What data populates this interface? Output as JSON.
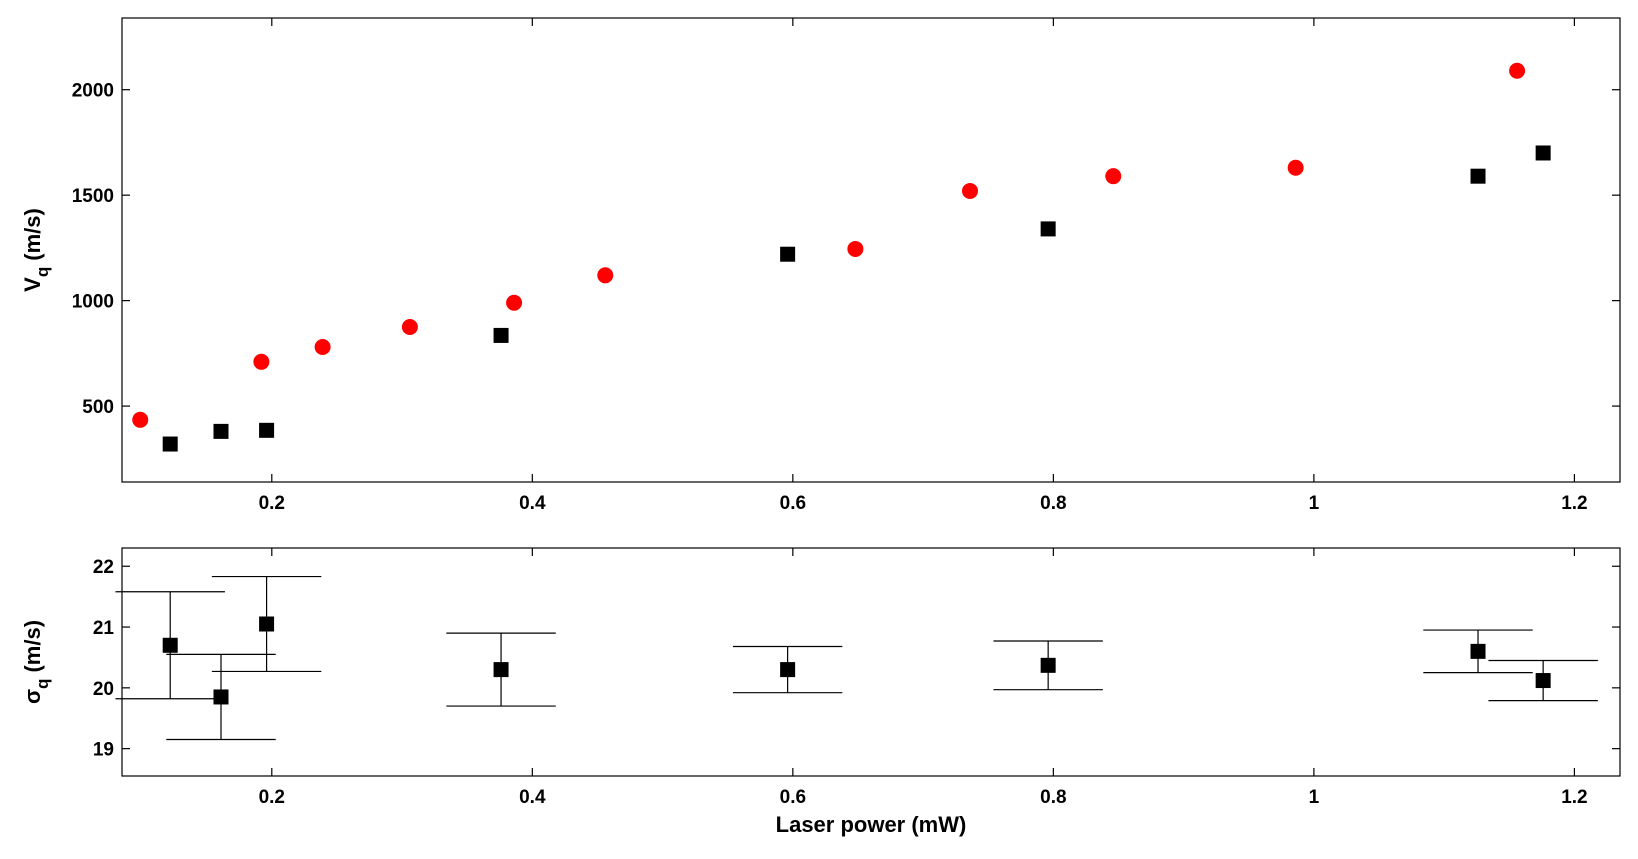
{
  "chart_data": [
    {
      "type": "scatter",
      "ylabel": "V",
      "ylabel_sub": "q",
      "ylabel_unit": "(m/s)",
      "xlim": [
        0.085,
        1.235
      ],
      "ylim": [
        140,
        2340
      ],
      "xticks": [
        0.2,
        0.4,
        0.6,
        0.8,
        1,
        1.2
      ],
      "xtick_labels": [
        "0.2",
        "0.4",
        "0.6",
        "0.8",
        "1",
        "1.2"
      ],
      "yticks": [
        500,
        1000,
        1500,
        2000
      ],
      "ytick_labels": [
        "500",
        "1000",
        "1500",
        "2000"
      ],
      "grid": false,
      "series": [
        {
          "marker": "circle",
          "color": "#ff0000",
          "x": [
            0.099,
            0.192,
            0.239,
            0.306,
            0.386,
            0.456,
            0.648,
            0.736,
            0.846,
            0.986,
            1.156
          ],
          "y": [
            435,
            710,
            780,
            875,
            990,
            1120,
            1245,
            1520,
            1590,
            1630,
            2090
          ]
        },
        {
          "marker": "square",
          "color": "#000000",
          "x": [
            0.122,
            0.161,
            0.196,
            0.376,
            0.596,
            0.796,
            1.126,
            1.176
          ],
          "y": [
            320,
            380,
            385,
            835,
            1220,
            1340,
            1590,
            1700
          ]
        }
      ]
    },
    {
      "type": "scatter",
      "xlabel": "Laser power (mW)",
      "ylabel": "σ",
      "ylabel_sub": "q",
      "ylabel_unit": "(m/s)",
      "xlim": [
        0.085,
        1.235
      ],
      "ylim": [
        18.55,
        22.3
      ],
      "xticks": [
        0.2,
        0.4,
        0.6,
        0.8,
        1,
        1.2
      ],
      "xtick_labels": [
        "0.2",
        "0.4",
        "0.6",
        "0.8",
        "1",
        "1.2"
      ],
      "yticks": [
        19,
        20,
        21,
        22
      ],
      "ytick_labels": [
        "19",
        "20",
        "21",
        "22"
      ],
      "grid": false,
      "series": [
        {
          "marker": "square",
          "color": "#000000",
          "x": [
            0.122,
            0.161,
            0.196,
            0.376,
            0.596,
            0.796,
            1.126,
            1.176
          ],
          "y": [
            20.7,
            19.85,
            21.05,
            20.3,
            20.3,
            20.37,
            20.6,
            20.12
          ],
          "y_err": [
            0.88,
            0.7,
            0.78,
            0.6,
            0.38,
            0.4,
            0.35,
            0.33
          ],
          "x_err": [
            0.042,
            0.042,
            0.042,
            0.042,
            0.042,
            0.042,
            0.042,
            0.042
          ]
        }
      ]
    }
  ]
}
